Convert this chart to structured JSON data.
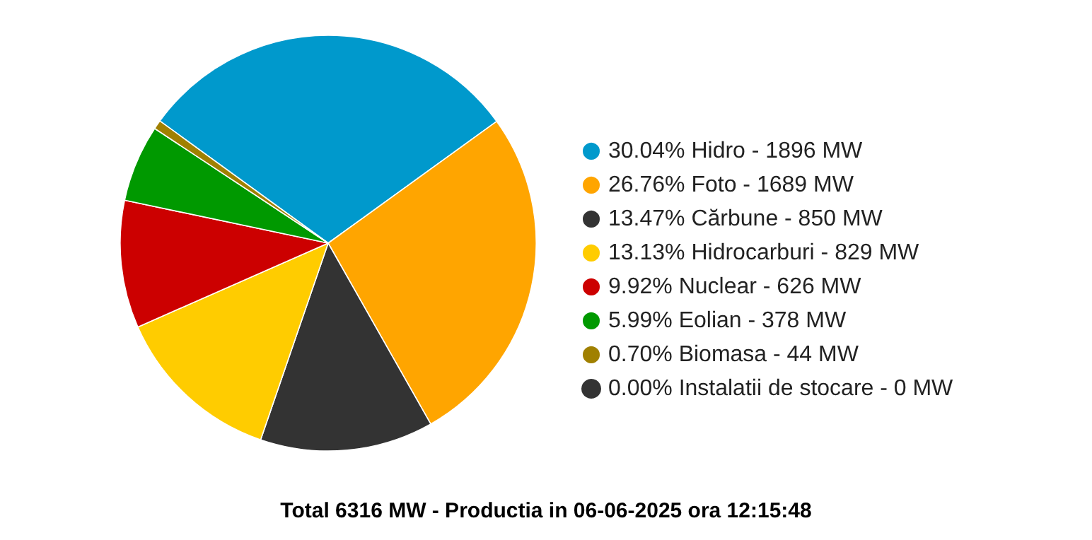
{
  "chart_data": {
    "type": "pie",
    "title": "Total 6316 MW - Productia in 06-06-2025 ora 12:15:48",
    "categories": [
      "30.04% Hidro - 1896 MW",
      "26.76% Foto - 1689 MW",
      "13.47% Cărbune - 850 MW",
      "13.13% Hidrocarburi - 829 MW",
      "9.92% Nuclear - 626 MW",
      "5.99% Eolian - 378 MW",
      "0.70% Biomasa - 44 MW",
      "0.00% Instalatii de stocare - 0 MW"
    ],
    "values": [
      30.04,
      26.76,
      13.47,
      13.13,
      9.92,
      5.99,
      0.7,
      0.0
    ],
    "colors": [
      "#0099cc",
      "#ffa500",
      "#333333",
      "#ffcc00",
      "#cc0000",
      "#009900",
      "#a08000",
      "#333333"
    ],
    "legend": "right"
  }
}
